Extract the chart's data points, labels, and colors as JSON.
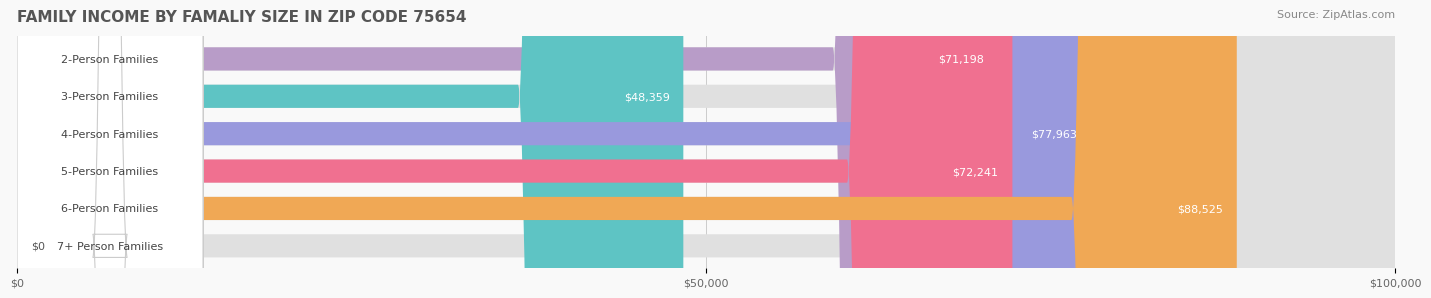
{
  "title": "FAMILY INCOME BY FAMALIY SIZE IN ZIP CODE 75654",
  "source": "Source: ZipAtlas.com",
  "categories": [
    "2-Person Families",
    "3-Person Families",
    "4-Person Families",
    "5-Person Families",
    "6-Person Families",
    "7+ Person Families"
  ],
  "values": [
    71198,
    48359,
    77963,
    72241,
    88525,
    0
  ],
  "bar_colors": [
    "#b89cc8",
    "#5ec4c4",
    "#9999dd",
    "#f07090",
    "#f0a855",
    "#f5c0c0"
  ],
  "bar_bg_color": "#e8e8e8",
  "label_bg_color": "#ffffff",
  "xmax": 100000,
  "xticks": [
    0,
    50000,
    100000
  ],
  "xtick_labels": [
    "$0",
    "$50,000",
    "$100,000"
  ],
  "value_labels": [
    "$71,198",
    "$48,359",
    "$77,963",
    "$72,241",
    "$88,525",
    "$0"
  ],
  "bar_height": 0.62,
  "background_color": "#f9f9f9",
  "title_color": "#555555",
  "title_fontsize": 11,
  "source_fontsize": 8,
  "label_fontsize": 8,
  "value_fontsize": 8
}
